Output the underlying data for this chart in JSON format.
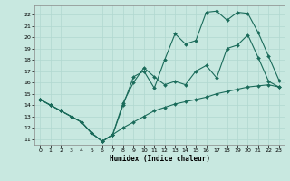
{
  "xlabel": "Humidex (Indice chaleur)",
  "bg_color": "#c8e8e0",
  "line_color": "#1a6b5a",
  "grid_color": "#b0d8d0",
  "xlim": [
    -0.5,
    23.5
  ],
  "ylim": [
    10.5,
    22.8
  ],
  "xticks": [
    0,
    1,
    2,
    3,
    4,
    5,
    6,
    7,
    8,
    9,
    10,
    11,
    12,
    13,
    14,
    15,
    16,
    17,
    18,
    19,
    20,
    21,
    22,
    23
  ],
  "yticks": [
    11,
    12,
    13,
    14,
    15,
    16,
    17,
    18,
    19,
    20,
    21,
    22
  ],
  "line1_x": [
    0,
    1,
    2,
    3,
    4,
    5,
    6,
    7,
    8,
    9,
    10,
    11,
    12,
    13,
    14,
    15,
    16,
    17,
    18,
    19,
    20,
    21,
    22,
    23
  ],
  "line1_y": [
    14.5,
    14.0,
    13.5,
    13.0,
    12.5,
    11.5,
    10.8,
    11.4,
    12.0,
    12.5,
    13.0,
    13.5,
    13.8,
    14.1,
    14.3,
    14.5,
    14.7,
    15.0,
    15.2,
    15.4,
    15.6,
    15.7,
    15.8,
    15.6
  ],
  "line2_x": [
    0,
    1,
    2,
    3,
    4,
    5,
    6,
    7,
    8,
    9,
    10,
    11,
    12,
    13,
    14,
    15,
    16,
    17,
    18,
    19,
    20,
    21,
    22,
    23
  ],
  "line2_y": [
    14.5,
    14.0,
    13.5,
    13.0,
    12.5,
    11.5,
    10.8,
    11.4,
    14.0,
    16.5,
    17.0,
    15.5,
    18.0,
    20.3,
    19.4,
    19.7,
    22.2,
    22.3,
    21.5,
    22.2,
    22.1,
    20.4,
    18.3,
    16.2
  ],
  "line3_x": [
    0,
    1,
    2,
    3,
    4,
    5,
    6,
    7,
    8,
    9,
    10,
    11,
    12,
    13,
    14,
    15,
    16,
    17,
    18,
    19,
    20,
    21,
    22,
    23
  ],
  "line3_y": [
    14.5,
    14.0,
    13.5,
    13.0,
    12.5,
    11.5,
    10.8,
    11.4,
    14.2,
    16.0,
    17.3,
    16.5,
    15.8,
    16.1,
    15.8,
    17.0,
    17.5,
    16.4,
    19.0,
    19.3,
    20.2,
    18.2,
    16.1,
    15.6
  ]
}
